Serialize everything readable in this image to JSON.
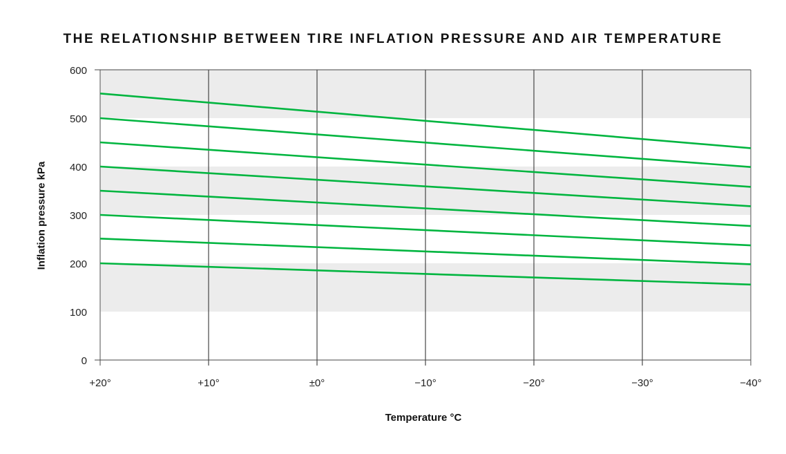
{
  "chart_data": {
    "type": "line",
    "title": "THE RELATIONSHIP BETWEEN TIRE INFLATION PRESSURE AND AIR TEMPERATURE",
    "xlabel": "Temperature °C",
    "ylabel": "Inflation pressure kPa",
    "x": [
      20,
      -40
    ],
    "x_tick_labels": [
      "+20°",
      "+10°",
      "±0°",
      "−10°",
      "−20°",
      "−30°",
      "−40°"
    ],
    "x_ticks": [
      20,
      10,
      0,
      -10,
      -20,
      -30,
      -40
    ],
    "y_tick_labels": [
      "0",
      "100",
      "200",
      "300",
      "400",
      "500",
      "600"
    ],
    "ylim": [
      0,
      600
    ],
    "xlim": [
      20,
      -40
    ],
    "grid": "vertical lines at x ticks; alternating gray horizontal bands 100-200, 300-400, 500-600",
    "line_color": "#00b53f",
    "band_color": "#ececec",
    "series": [
      {
        "values": [
          551,
          438
        ]
      },
      {
        "values": [
          500,
          399
        ]
      },
      {
        "values": [
          450,
          358
        ]
      },
      {
        "values": [
          400,
          318
        ]
      },
      {
        "values": [
          350,
          277
        ]
      },
      {
        "values": [
          300,
          237
        ]
      },
      {
        "values": [
          251,
          198
        ]
      },
      {
        "values": [
          200,
          156
        ]
      }
    ]
  }
}
